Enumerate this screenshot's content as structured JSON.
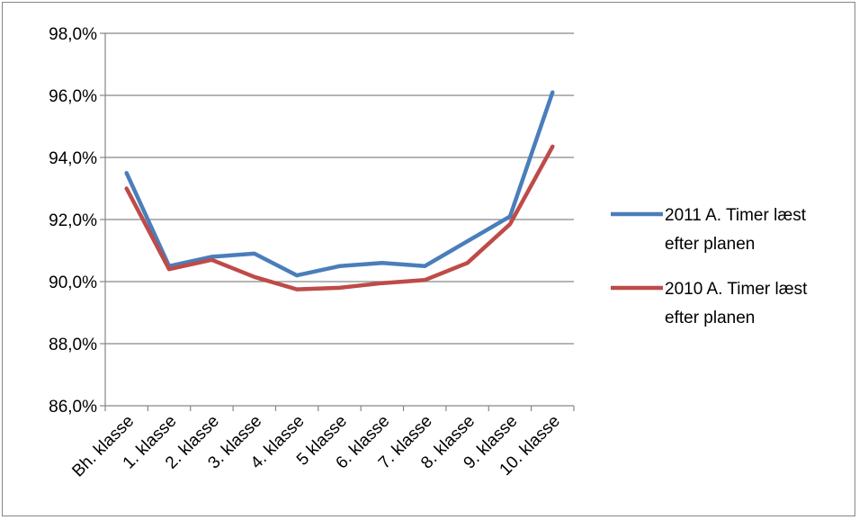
{
  "chart_data": {
    "type": "line",
    "categories": [
      "Bh. klasse",
      "1. klasse",
      "2. klasse",
      "3. klasse",
      "4. klasse",
      "5 klasse",
      "6. klasse",
      "7. klasse",
      "8. klasse",
      "9. klasse",
      "10. klasse"
    ],
    "series": [
      {
        "name": "2011 A. Timer læst efter planen",
        "color": "#4a7ebb",
        "values": [
          93.5,
          90.5,
          90.8,
          90.9,
          90.2,
          90.5,
          90.6,
          90.5,
          91.3,
          92.1,
          96.1
        ]
      },
      {
        "name": "2010 A. Timer læst efter planen",
        "color": "#be4b48",
        "values": [
          93.0,
          90.4,
          90.7,
          90.15,
          89.75,
          89.8,
          89.95,
          90.05,
          90.6,
          91.85,
          94.35
        ]
      }
    ],
    "y_ticks": [
      "86,0%",
      "88,0%",
      "90,0%",
      "92,0%",
      "94,0%",
      "96,0%",
      "98,0%"
    ],
    "ylim": [
      86,
      98
    ],
    "grid": true,
    "legend_position": "right",
    "legend": {
      "series_1_lines": [
        "2011 A. Timer læst",
        "efter planen"
      ],
      "series_2_lines": [
        "2010 A. Timer læst",
        "efter planen"
      ]
    }
  }
}
